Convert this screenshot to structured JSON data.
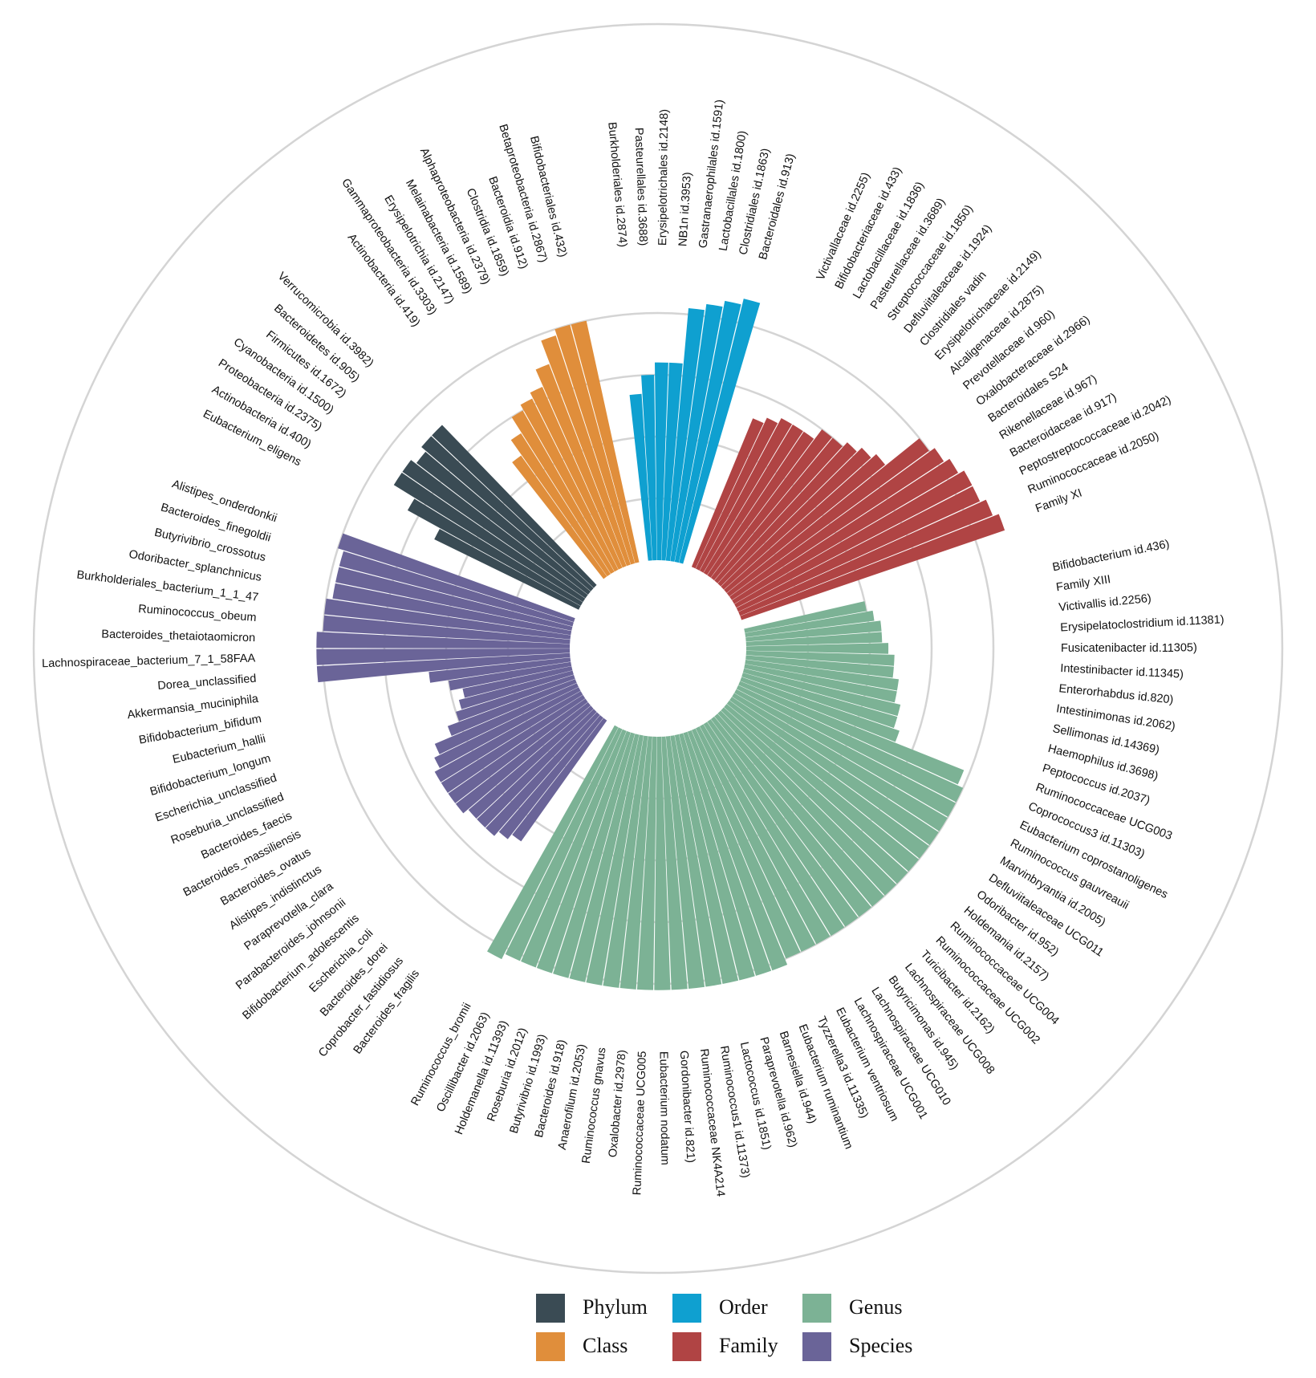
{
  "chart_data": {
    "type": "circular-bar",
    "title": "",
    "groups": [
      {
        "name": "Phylum",
        "color": "#3a4b54",
        "labels": [
          "Eubacterium_eligens",
          "Actinobacteria id.400)",
          "Proteobacteria id.2375)",
          "Cyanobacteria id.1500)",
          "Firmicutes id.1672)",
          "Bacteroidetes id.905)",
          "Verrucomicrobia id.3982)"
        ],
        "values": [
          2.6,
          3.2,
          3.6,
          3.6,
          3.5,
          3.6,
          3.6
        ]
      },
      {
        "name": "Class",
        "color": "#e08e3b",
        "labels": [
          "Actinobacteria id.419)",
          "Gammaproteobacteria id.3303)",
          "Erysipelotrichia id.2147)",
          "Melainabacteria id.1589)",
          "Alphaproteobacteria id.2379)",
          "Clostridia id.1859)",
          "Bacteroidia id.912)",
          "Betaproteobacteria id.2867)",
          "Bifidobacteriales id.432)"
        ],
        "values": [
          2.4,
          2.7,
          3.0,
          3.1,
          3.2,
          3.5,
          3.9,
          4.0,
          4.0
        ]
      },
      {
        "name": "Order",
        "color": "#0fa0d0",
        "labels": [
          "Burkholderiales id.2874)",
          "Pasteurellales id.3688)",
          "Erysipelotrichales id.2148)",
          "NB1n id.3953)",
          "Gastranaerophilales id.1591)",
          "Lactobacillales id.1800)",
          "Clostridiales id.1863)",
          "Bacteroidales id.913)"
        ],
        "values": [
          2.7,
          3.0,
          3.2,
          3.2,
          4.1,
          4.2,
          4.3,
          4.4
        ]
      },
      {
        "name": "Family",
        "color": "#b04444",
        "labels": [
          "Victivallaceae id.2255)",
          "Bifidobacteriaceae id.433)",
          "Lactobacillaceae id.1836)",
          "Pasteurellaceae id.3689)",
          "Streptococcaceae id.1850)",
          "Defluviitaleaceae id.1924)",
          "Clostridiales vadin",
          "Erysipelotrichaceae id.2149)",
          "Alcaligenaceae id.2875)",
          "Prevotellaceae id.960)",
          "Oxalobacteraceae id.2966)",
          "Bacteroidales S24",
          "Rikenellaceae id.967)",
          "Bacteroidaceae id.917)",
          "Peptostreptococcaceae id.2042)",
          "Ruminococcaceae id.2050)",
          "Family XI"
        ],
        "values": [
          2.6,
          2.7,
          2.8,
          2.8,
          2.8,
          3.0,
          3.0,
          3.1,
          3.2,
          3.3,
          4.0,
          4.1,
          4.2,
          4.3,
          4.3,
          4.4,
          4.5
        ]
      },
      {
        "name": "Genus",
        "color": "#7cb295",
        "labels": [
          "Bifidobacterium id.436)",
          "Family XIII",
          "Victivallis id.2256)",
          "Erysipelatoclostridium id.11381)",
          "Fusicatenibacter id.11305)",
          "Intestinibacter id.11345)",
          "Enterorhabdus id.820)",
          "Intestinimonas id.2062)",
          "Sellimonas id.14369)",
          "Haemophilus id.3698)",
          "Peptococcus id.2037)",
          "Ruminococcaceae UCG003",
          "Coprococcus3 id.11303)",
          "Eubacterium coprostanoligenes",
          "Ruminococcus gauvreauii",
          "Marvinbryantia id.2005)",
          "Defluviitaleaceae UCG011",
          "Odoribacter id.952)",
          "Holdemania id.2157)",
          "Ruminococcaceae UCG004",
          "Ruminococcaceae UCG002",
          "Turicibacter id.2162)",
          "Lachnospiraceae UCG008",
          "Butyricimonas id.945)",
          "Lachnospiraceae UCG010",
          "Lachnospiraceae UCG001",
          "Eubacterium ventriosum",
          "Tyzzerella3 id.11335)",
          "Eubacterium ruminantium",
          "Barnesiella id.944)",
          "Paraprevotella id.962)",
          "Lactococcus id.1851)",
          "Ruminococcus1 id.11373)",
          "Ruminococcaceae NK4A214",
          "Gordonibacter id.821)",
          "Eubacterium nodatum",
          "Ruminococcaceae UCG005",
          "Oxalobacter id.2978)",
          "Ruminococcus gnavus",
          "Anaerofilum id.2053)",
          "Bacteroides id.918)",
          "Butyrivibrio id.1993)",
          "Roseburia id.2012)",
          "Holdemanella id.11393)",
          "Oscillibacter id.2063)",
          "Ruminococcus_bromii"
        ],
        "values": [
          2.0,
          2.1,
          2.2,
          2.2,
          2.3,
          2.4,
          2.4,
          2.5,
          2.5,
          2.6,
          2.6,
          2.7,
          3.9,
          4.0,
          4.0,
          4.0,
          4.0,
          4.0,
          4.0,
          4.0,
          4.0,
          4.0,
          4.0,
          4.0,
          4.0,
          4.0,
          4.0,
          4.0,
          4.1,
          4.1,
          4.1,
          4.1,
          4.1,
          4.1,
          4.1,
          4.1,
          4.1,
          4.1,
          4.1,
          4.1,
          4.1,
          4.1,
          4.1,
          4.1,
          4.1,
          4.2
        ]
      },
      {
        "name": "Species",
        "color": "#6a6498",
        "labels": [
          "Bacteroides_fragilis",
          "Coprobacter_fastidiosus",
          "Bacteroides_dorei",
          "Escherichia_coli",
          "Bifidobacterium_adolescentis",
          "Parabacteroides_johnsonii",
          "Paraprevotella_clara",
          "Alistipes_indistinctus",
          "Bacteroides_ovatus",
          "Bacteroides_massiliensis",
          "Bacteroides_faecis",
          "Roseburia_unclassified",
          "Escherichia_unclassified",
          "Bifidobacterium_longum",
          "Eubacterium_hallii",
          "Bifidobacterium_bifidum",
          "Akkermansia_muciniphila",
          "Dorea_unclassified",
          "Lachnospiraceae_bacterium_7_1_58FAA",
          "Bacteroides_thetaiotaomicron",
          "Ruminococcus_obeum",
          "Burkholderiales_bacterium_1_1_47",
          "Odoribacter_splanchnicus",
          "Butyrivibrio_crossotus",
          "Bacteroides_finegoldii",
          "Alistipes_onderdonkii"
        ],
        "values": [
          2.4,
          2.5,
          2.6,
          2.6,
          2.6,
          2.7,
          2.7,
          2.7,
          2.7,
          2.6,
          2.5,
          2.2,
          2.0,
          1.9,
          1.8,
          2.0,
          2.3,
          4.1,
          4.1,
          4.1,
          4.0,
          4.0,
          3.9,
          3.9,
          3.9,
          4.0
        ]
      }
    ],
    "radial_axis": {
      "ylim": [
        0,
        5
      ],
      "gridlines": [
        1,
        2,
        3,
        4
      ]
    },
    "legend": {
      "position": "bottom",
      "entries": [
        "Phylum",
        "Order",
        "Genus",
        "Class",
        "Family",
        "Species"
      ]
    }
  }
}
